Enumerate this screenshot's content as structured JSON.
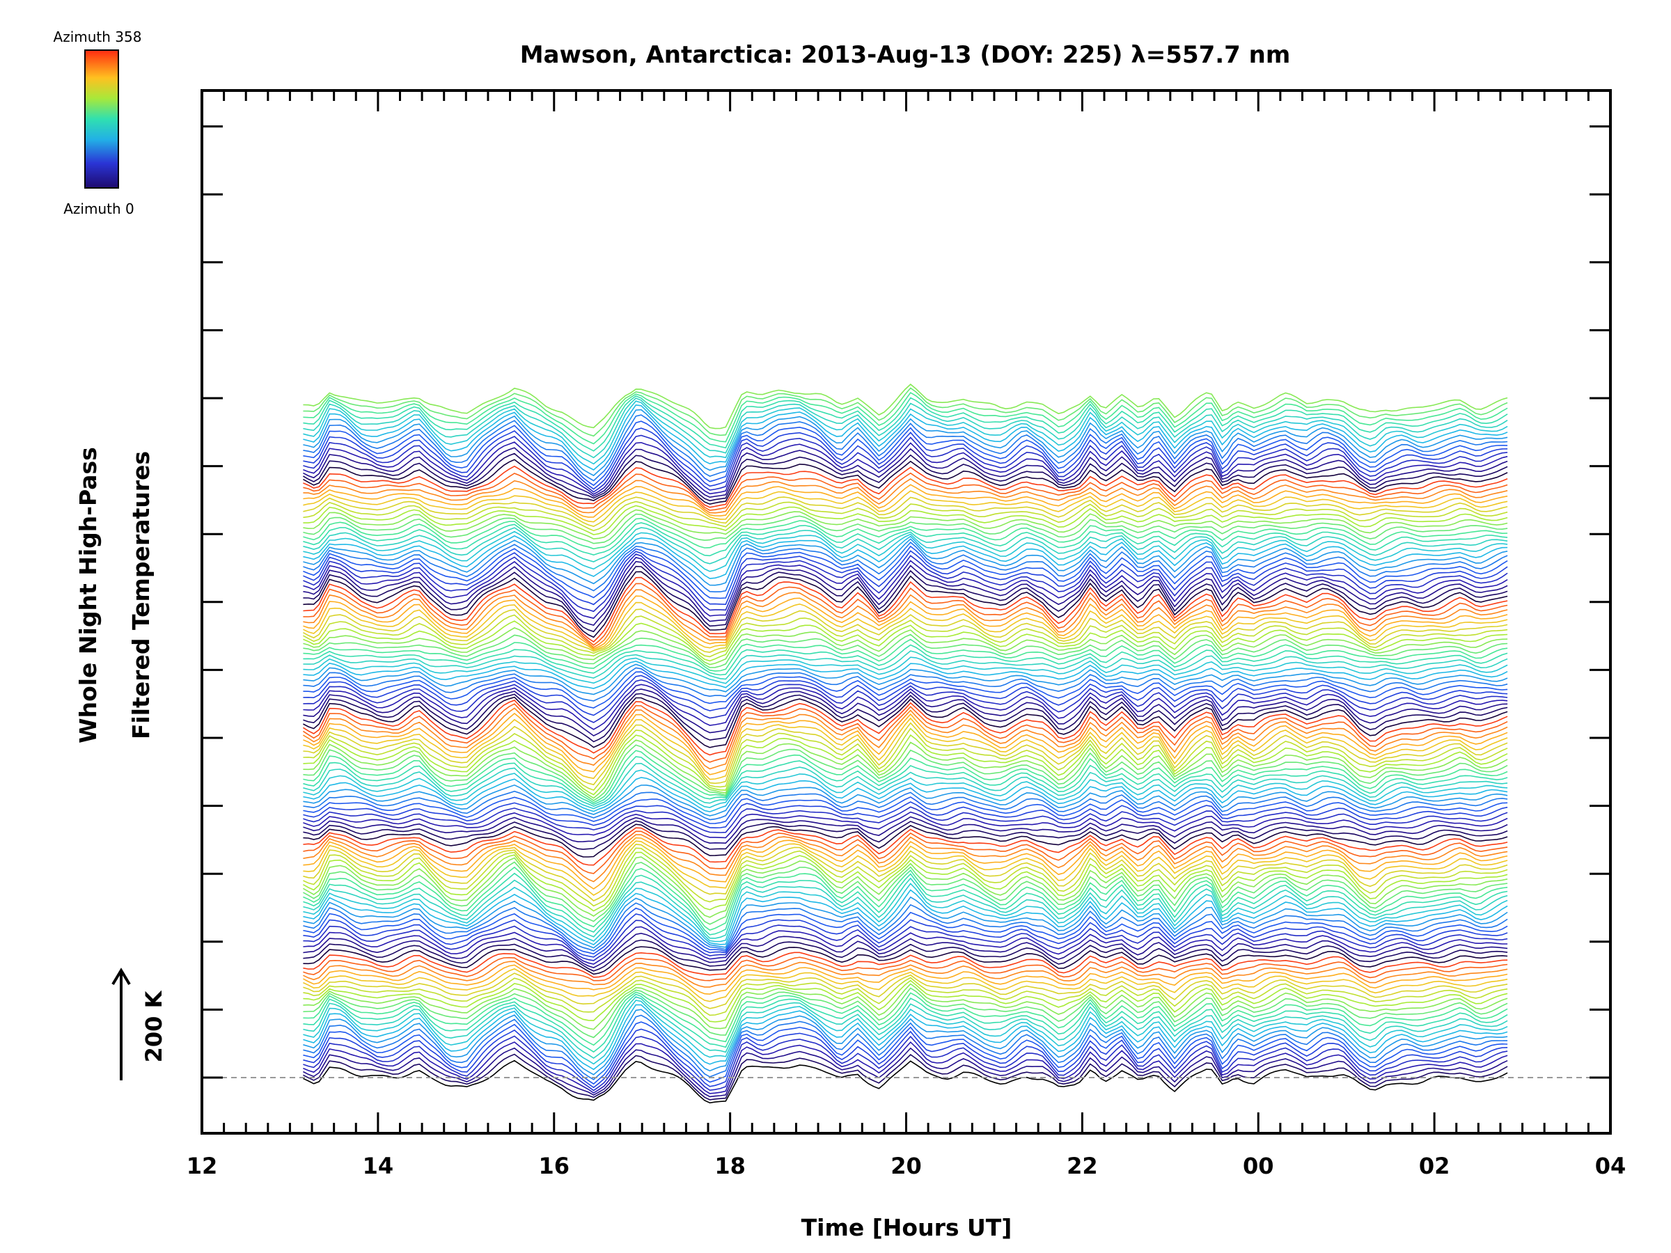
{
  "chart_data": {
    "type": "line",
    "title": "Mawson, Antarctica: 2013-Aug-13 (DOY: 225) λ=557.7 nm",
    "xlabel": "Time [Hours UT]",
    "ylabel_lines": [
      "Whole Night High-Pass",
      "Filtered Temperatures"
    ],
    "x_tick_labels": [
      "12",
      "14",
      "16",
      "18",
      "20",
      "22",
      "00",
      "02",
      "04"
    ],
    "xlim_hours": [
      12,
      28
    ],
    "data_time_range_hours": [
      13.15,
      26.85
    ],
    "y_scale_label": "200 K",
    "colorbar": {
      "top_label": "Azimuth  358",
      "bottom_label": "Azimuth  0",
      "colormap": "rainbow"
    },
    "grid": false,
    "baseline_dashed": true,
    "stacked_trace_count": 136,
    "traces_per_scan": 24,
    "scans": 6,
    "series_profile": {
      "t": [
        13.15,
        13.3,
        13.45,
        13.6,
        13.8,
        14.0,
        14.2,
        14.45,
        14.6,
        14.8,
        15.0,
        15.2,
        15.4,
        15.55,
        15.7,
        15.9,
        16.1,
        16.3,
        16.45,
        16.6,
        16.8,
        16.95,
        17.15,
        17.35,
        17.55,
        17.75,
        17.95,
        18.15,
        18.35,
        18.55,
        18.8,
        19.0,
        19.25,
        19.45,
        19.7,
        19.9,
        20.05,
        20.25,
        20.45,
        20.65,
        20.9,
        21.1,
        21.35,
        21.55,
        21.75,
        21.95,
        22.1,
        22.25,
        22.45,
        22.65,
        22.85,
        23.05,
        23.25,
        23.45,
        23.6,
        23.75,
        23.95,
        24.1,
        24.3,
        24.55,
        24.75,
        24.95,
        25.15,
        25.3,
        25.45,
        25.65,
        25.85,
        26.1,
        26.3,
        26.5,
        26.7,
        26.85
      ],
      "v": [
        -12,
        -20,
        35,
        30,
        5,
        -5,
        0,
        28,
        0,
        -30,
        -35,
        0,
        30,
        45,
        20,
        -10,
        -25,
        -60,
        -75,
        -50,
        20,
        55,
        30,
        0,
        -30,
        -70,
        -65,
        30,
        20,
        35,
        40,
        25,
        -10,
        15,
        -30,
        10,
        45,
        10,
        5,
        15,
        -10,
        -20,
        10,
        -5,
        -40,
        -15,
        30,
        -10,
        20,
        -20,
        15,
        -35,
        5,
        25,
        -30,
        5,
        -10,
        5,
        20,
        0,
        15,
        10,
        -25,
        -40,
        -20,
        -10,
        -15,
        -5,
        5,
        -10,
        0,
        10
      ]
    }
  }
}
